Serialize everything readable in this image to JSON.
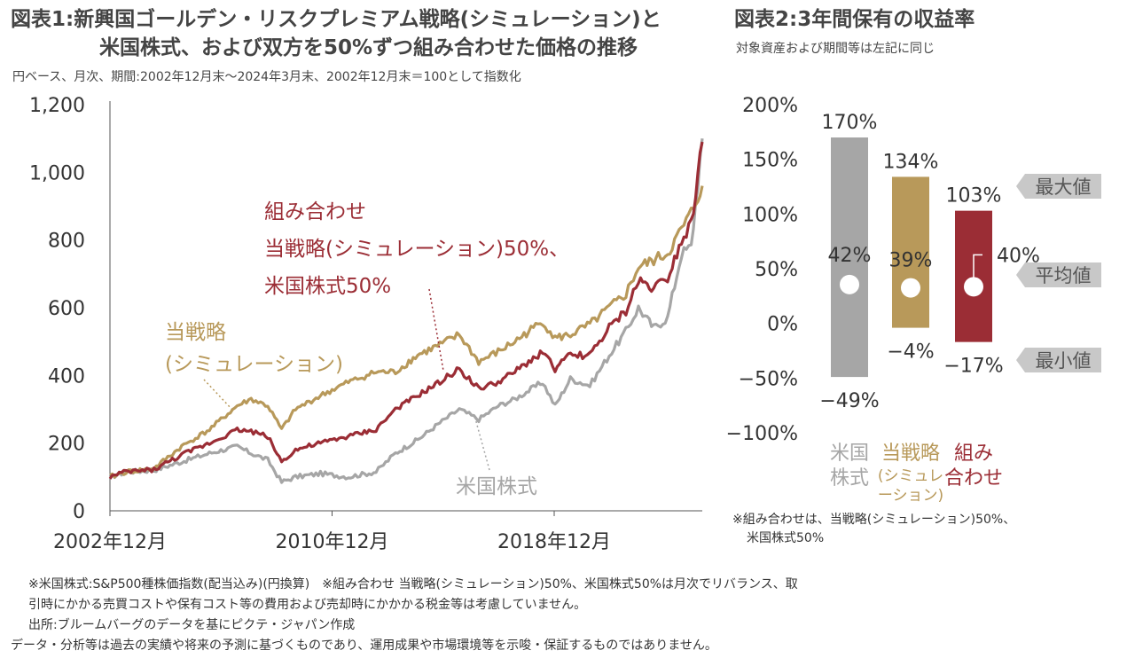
{
  "figure1": {
    "title_line1": "図表1:新興国ゴールデン・リスクプレミアム戦略(シミュレーション)と",
    "title_line2": "米国株式、および双方を50%ずつ組み合わせた価格の推移",
    "subtitle": "円ベース、月次、期間:2002年12月末～2024年3月末、2002年12月末＝100として指数化",
    "annotations": {
      "combo": [
        "組み合わせ",
        "当戦略(シミュレーション)50%、",
        "米国株式50%"
      ],
      "strategy": [
        "当戦略",
        "(シミュレーション)"
      ],
      "us": [
        "米国株式"
      ]
    }
  },
  "figure2": {
    "title": "図表2:3年間保有の収益率",
    "subtitle": "対象資産および期間等は左記に同じ",
    "markers": {
      "max": "最大値",
      "avg": "平均値",
      "min": "最小値"
    },
    "footnote": [
      "※組み合わせは、当戦略(シミュレーション)50%、",
      "米国株式50%"
    ]
  },
  "notes": [
    "※米国株式:S&P500種株価指数(配当込み)(円換算)　※組み合わせ 当戦略(シミュレーション)50%、米国株式50%は月次でリバランス、取",
    "引時にかかる売買コストや保有コスト等の費用および売却時にかかかる税金等は考慮していません。",
    "出所:ブルームバーグのデータを基にピクテ・ジャパン作成",
    "データ・分析等は過去の実績や将来の予測に基づくものであり、運用成果や市場環境等を示唆・保証するものではありません。"
  ],
  "chart_data": [
    {
      "type": "line",
      "title": "図表1:新興国ゴールデン・リスクプレミアム戦略(シミュレーション)と米国株式、および双方を50%ずつ組み合わせた価格の推移",
      "x_range": [
        "2002-12",
        "2024-03"
      ],
      "x_ticks": [
        2002.917,
        2010.917,
        2018.917
      ],
      "x_tick_labels": [
        "2002年12月",
        "2010年12月",
        "2018年12月"
      ],
      "ylim": [
        0,
        1200
      ],
      "y_ticks": [
        0,
        200,
        400,
        600,
        800,
        1000,
        1200
      ],
      "y_tick_labels": [
        "0",
        "200",
        "400",
        "600",
        "800",
        "1,000",
        "1,200"
      ],
      "series": [
        {
          "name": "米国株式",
          "color": "#a6a6a6",
          "points": [
            [
              2002.92,
              100
            ],
            [
              2003.5,
              115
            ],
            [
              2004.5,
              120
            ],
            [
              2005.5,
              145
            ],
            [
              2006.5,
              170
            ],
            [
              2007.5,
              190
            ],
            [
              2008.0,
              170
            ],
            [
              2008.6,
              150
            ],
            [
              2009.1,
              85
            ],
            [
              2009.6,
              100
            ],
            [
              2010.5,
              110
            ],
            [
              2011.5,
              100
            ],
            [
              2012.5,
              115
            ],
            [
              2013.2,
              170
            ],
            [
              2014.0,
              210
            ],
            [
              2014.8,
              260
            ],
            [
              2015.5,
              300
            ],
            [
              2016.2,
              270
            ],
            [
              2016.9,
              310
            ],
            [
              2017.5,
              330
            ],
            [
              2018.5,
              380
            ],
            [
              2018.95,
              310
            ],
            [
              2019.5,
              390
            ],
            [
              2020.2,
              370
            ],
            [
              2020.9,
              460
            ],
            [
              2021.5,
              530
            ],
            [
              2021.95,
              600
            ],
            [
              2022.5,
              540
            ],
            [
              2023.0,
              570
            ],
            [
              2023.5,
              760
            ],
            [
              2023.85,
              780
            ],
            [
              2024.25,
              1100
            ]
          ]
        },
        {
          "name": "当戦略(シミュレーション)",
          "color": "#b8995a",
          "points": [
            [
              2002.92,
              100
            ],
            [
              2003.5,
              115
            ],
            [
              2004.5,
              125
            ],
            [
              2005.5,
              190
            ],
            [
              2006.5,
              240
            ],
            [
              2007.5,
              310
            ],
            [
              2008.0,
              330
            ],
            [
              2008.6,
              310
            ],
            [
              2009.1,
              240
            ],
            [
              2009.6,
              300
            ],
            [
              2010.5,
              340
            ],
            [
              2011.5,
              380
            ],
            [
              2012.5,
              410
            ],
            [
              2013.2,
              410
            ],
            [
              2014.0,
              460
            ],
            [
              2014.8,
              490
            ],
            [
              2015.5,
              520
            ],
            [
              2016.2,
              440
            ],
            [
              2016.9,
              470
            ],
            [
              2017.5,
              500
            ],
            [
              2018.5,
              560
            ],
            [
              2018.95,
              510
            ],
            [
              2019.5,
              520
            ],
            [
              2020.2,
              550
            ],
            [
              2020.9,
              600
            ],
            [
              2021.5,
              640
            ],
            [
              2021.95,
              720
            ],
            [
              2022.5,
              740
            ],
            [
              2023.0,
              760
            ],
            [
              2023.5,
              830
            ],
            [
              2023.85,
              880
            ],
            [
              2024.25,
              960
            ]
          ]
        },
        {
          "name": "組み合わせ 当戦略(シミュレーション)50%、米国株式50%",
          "color": "#9b2d35",
          "points": [
            [
              2002.92,
              100
            ],
            [
              2003.5,
              115
            ],
            [
              2004.5,
              122
            ],
            [
              2005.5,
              165
            ],
            [
              2006.5,
              200
            ],
            [
              2007.5,
              240
            ],
            [
              2008.0,
              235
            ],
            [
              2008.6,
              220
            ],
            [
              2009.1,
              145
            ],
            [
              2009.6,
              180
            ],
            [
              2010.5,
              200
            ],
            [
              2011.5,
              220
            ],
            [
              2012.5,
              240
            ],
            [
              2013.2,
              300
            ],
            [
              2014.0,
              340
            ],
            [
              2014.8,
              380
            ],
            [
              2015.5,
              420
            ],
            [
              2016.2,
              360
            ],
            [
              2016.9,
              380
            ],
            [
              2017.5,
              410
            ],
            [
              2018.5,
              470
            ],
            [
              2018.95,
              420
            ],
            [
              2019.5,
              460
            ],
            [
              2020.2,
              460
            ],
            [
              2020.9,
              540
            ],
            [
              2021.5,
              590
            ],
            [
              2021.95,
              680
            ],
            [
              2022.5,
              660
            ],
            [
              2023.0,
              690
            ],
            [
              2023.5,
              800
            ],
            [
              2023.85,
              850
            ],
            [
              2024.25,
              1090
            ]
          ]
        }
      ]
    },
    {
      "type": "bar",
      "title": "図表2:3年間保有の収益率",
      "ylim": [
        -100,
        200
      ],
      "y_ticks": [
        -100,
        -50,
        0,
        50,
        100,
        150,
        200
      ],
      "y_tick_labels": [
        "−100%",
        "−50%",
        "0%",
        "50%",
        "100%",
        "150%",
        "200%"
      ],
      "categories": [
        [
          "米国",
          "株式"
        ],
        [
          "当戦略",
          "(シミュレ",
          "ーション)"
        ],
        [
          "組み",
          "合わせ"
        ]
      ],
      "category_colors": [
        "#a6a6a6",
        "#b8995a",
        "#9b2d35"
      ],
      "max": [
        170,
        134,
        103
      ],
      "avg": [
        42,
        39,
        40
      ],
      "min": [
        -49,
        -4,
        -17
      ],
      "max_labels": [
        "170%",
        "134%",
        "103%"
      ],
      "avg_labels": [
        "42%",
        "39%",
        "40%"
      ],
      "min_labels": [
        "−49%",
        "−4%",
        "−17%"
      ]
    }
  ]
}
